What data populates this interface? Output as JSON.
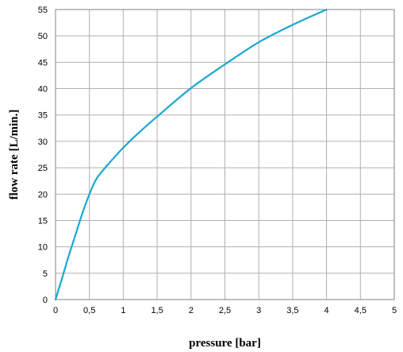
{
  "chart_data": {
    "type": "line",
    "xlabel": "pressure [bar]",
    "ylabel": "flow rate [L/min.]",
    "xlim": [
      0,
      5
    ],
    "ylim": [
      0,
      55
    ],
    "x_ticks": [
      "0",
      "0,5",
      "1",
      "1,5",
      "2",
      "2,5",
      "3",
      "3,5",
      "4",
      "4,5",
      "5"
    ],
    "y_ticks": [
      "0",
      "5",
      "10",
      "15",
      "20",
      "25",
      "30",
      "35",
      "40",
      "45",
      "50",
      "55"
    ],
    "grid": true,
    "series": [
      {
        "color": "#1aa7d1",
        "x": [
          0,
          0.1,
          0.2,
          0.3,
          0.4,
          0.5,
          0.6,
          0.7,
          0.8,
          1.0,
          1.2,
          1.5,
          2.0,
          2.5,
          3.0,
          3.5,
          4.0
        ],
        "y": [
          0,
          4.2,
          8.5,
          12.5,
          16.5,
          20,
          22.8,
          24.5,
          26,
          28.8,
          31.3,
          34.7,
          40.1,
          44.6,
          48.8,
          52.1,
          55
        ]
      }
    ]
  }
}
